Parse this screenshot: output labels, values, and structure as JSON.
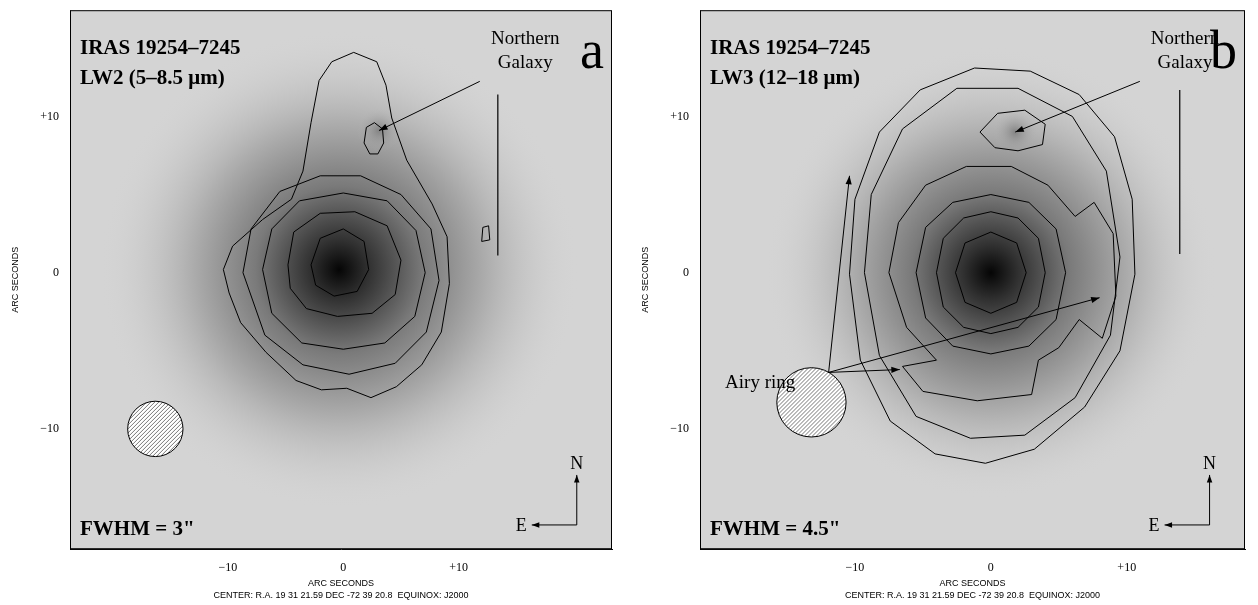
{
  "chart_data": [
    {
      "type": "contour",
      "panel": "a",
      "title": "IRAS 19254–7245",
      "subtitle": "LW2 (5–8.5 μm)",
      "beam_label": "FWHM = 3\"",
      "beam": {
        "x": -16.3,
        "y": -10.0,
        "diameter": 4.8
      },
      "x_label": "ARC SECONDS",
      "y_label": "ARC SECONDS",
      "caption": "CENTER: R.A. 19 31 21.59 DEC -72 39 20.8  EQUINOX: J2000",
      "xlim": [
        -23.7,
        23.3
      ],
      "ylim": [
        -17.7,
        16.8
      ],
      "xticks": [
        {
          "value": -10,
          "label": "−10"
        },
        0,
        {
          "value": 10,
          "label": "+10"
        }
      ],
      "yticks": [
        {
          "value": -10,
          "label": "−10"
        },
        0,
        {
          "value": 10,
          "label": "+10"
        }
      ],
      "grid": false,
      "peak": [
        -0.35,
        0.2
      ],
      "contours": [
        [
          [
            -10.4,
            0.2
          ],
          [
            -9.6,
            1.7
          ],
          [
            -7.0,
            3.4
          ],
          [
            -4.5,
            4.7
          ],
          [
            -3.5,
            6.5
          ],
          [
            -2.8,
            9.6
          ],
          [
            -2.1,
            12.3
          ],
          [
            -1.0,
            13.5
          ],
          [
            0.9,
            14.1
          ],
          [
            2.9,
            13.5
          ],
          [
            3.7,
            12.0
          ],
          [
            4.2,
            9.9
          ],
          [
            5.5,
            7.2
          ],
          [
            7.7,
            4.4
          ],
          [
            9.0,
            2.3
          ],
          [
            9.2,
            -0.7
          ],
          [
            8.5,
            -3.8
          ],
          [
            6.8,
            -5.9
          ],
          [
            4.6,
            -7.3
          ],
          [
            2.4,
            -8.0
          ],
          [
            0.3,
            -7.4
          ],
          [
            -1.9,
            -7.5
          ],
          [
            -4.1,
            -6.9
          ],
          [
            -6.7,
            -5.1
          ],
          [
            -8.9,
            -3.2
          ],
          [
            -9.9,
            -1.3
          ]
        ],
        [
          [
            -8.7,
            0.0
          ],
          [
            -8.0,
            2.8
          ],
          [
            -5.5,
            5.2
          ],
          [
            -2.0,
            6.2
          ],
          [
            1.5,
            6.2
          ],
          [
            5.0,
            5.0
          ],
          [
            7.6,
            2.8
          ],
          [
            8.3,
            -0.5
          ],
          [
            7.2,
            -3.8
          ],
          [
            4.5,
            -5.8
          ],
          [
            0.5,
            -6.5
          ],
          [
            -3.5,
            -5.9
          ],
          [
            -6.8,
            -4.0
          ]
        ],
        [
          [
            -7.0,
            0.2
          ],
          [
            -6.2,
            2.8
          ],
          [
            -3.8,
            4.6
          ],
          [
            0.0,
            5.1
          ],
          [
            3.8,
            4.6
          ],
          [
            6.3,
            2.7
          ],
          [
            7.1,
            0.0
          ],
          [
            6.2,
            -2.8
          ],
          [
            3.6,
            -4.5
          ],
          [
            0.0,
            -4.9
          ],
          [
            -3.6,
            -4.5
          ],
          [
            -6.2,
            -2.6
          ]
        ],
        [
          [
            -4.8,
            0.5
          ],
          [
            -4.3,
            2.6
          ],
          [
            -2.0,
            3.8
          ],
          [
            1.0,
            3.9
          ],
          [
            3.8,
            3.0
          ],
          [
            5.0,
            0.8
          ],
          [
            4.5,
            -1.4
          ],
          [
            2.5,
            -2.6
          ],
          [
            -0.5,
            -2.8
          ],
          [
            -3.2,
            -2.3
          ],
          [
            -4.6,
            -1.0
          ]
        ],
        [
          [
            -2.8,
            0.5
          ],
          [
            -2.0,
            2.2
          ],
          [
            0.0,
            2.8
          ],
          [
            1.8,
            2.0
          ],
          [
            2.2,
            0.2
          ],
          [
            1.2,
            -1.2
          ],
          [
            -0.8,
            -1.5
          ],
          [
            -2.4,
            -0.8
          ]
        ],
        [
          [
            1.8,
            8.3
          ],
          [
            2.0,
            9.3
          ],
          [
            2.7,
            9.6
          ],
          [
            3.4,
            9.2
          ],
          [
            3.5,
            8.3
          ],
          [
            3.0,
            7.6
          ],
          [
            2.3,
            7.6
          ]
        ],
        [
          [
            12.0,
            2.0
          ],
          [
            12.1,
            2.9
          ],
          [
            12.6,
            3.0
          ],
          [
            12.7,
            2.1
          ]
        ]
      ],
      "scale_bar": [
        [
          13.4,
          1.1
        ],
        [
          13.4,
          11.4
        ]
      ],
      "annotations": [
        {
          "text": "Northern Galaxy",
          "targets": [
            [
              3.1,
              9.1
            ]
          ]
        }
      ],
      "compass": [
        "N",
        "E"
      ]
    },
    {
      "type": "contour",
      "panel": "b",
      "title": "IRAS 19254–7245",
      "subtitle": "LW3 (12–18 μm)",
      "beam_label": "FWHM = 4.5\"",
      "beam": {
        "x": -13.2,
        "y": -8.3,
        "diameter": 5.1
      },
      "x_label": "ARC SECONDS",
      "y_label": "ARC SECONDS",
      "caption": "CENTER: R.A. 19 31 21.59 DEC -72 39 20.8  EQUINOX: J2000",
      "xlim": [
        -21.4,
        18.7
      ],
      "ylim": [
        -17.7,
        16.8
      ],
      "xticks": [
        {
          "value": -10,
          "label": "−10"
        },
        0,
        {
          "value": 10,
          "label": "+10"
        }
      ],
      "yticks": [
        {
          "value": -10,
          "label": "−10"
        },
        0,
        {
          "value": 10,
          "label": "+10"
        }
      ],
      "grid": false,
      "peak": [
        0.0,
        0.0
      ],
      "contours": [
        [
          [
            -10.4,
            -0.1
          ],
          [
            -10.0,
            4.7
          ],
          [
            -8.2,
            9.0
          ],
          [
            -5.2,
            11.7
          ],
          [
            -1.2,
            13.1
          ],
          [
            2.9,
            12.9
          ],
          [
            6.5,
            11.4
          ],
          [
            9.1,
            8.7
          ],
          [
            10.4,
            4.7
          ],
          [
            10.6,
            -0.1
          ],
          [
            9.5,
            -5.0
          ],
          [
            6.9,
            -8.6
          ],
          [
            3.2,
            -11.3
          ],
          [
            -0.4,
            -12.2
          ],
          [
            -4.1,
            -11.6
          ],
          [
            -7.4,
            -9.5
          ],
          [
            -9.6,
            -5.6
          ]
        ],
        [
          [
            -9.3,
            0.0
          ],
          [
            -8.8,
            5.0
          ],
          [
            -6.5,
            9.2
          ],
          [
            -2.5,
            11.8
          ],
          [
            2.0,
            11.8
          ],
          [
            6.0,
            10.0
          ],
          [
            8.5,
            6.5
          ],
          [
            9.5,
            1.0
          ],
          [
            8.8,
            -4.0
          ],
          [
            6.2,
            -8.0
          ],
          [
            2.5,
            -10.4
          ],
          [
            -1.5,
            -10.6
          ],
          [
            -5.5,
            -9.2
          ],
          [
            -8.2,
            -5.3
          ]
        ],
        [
          [
            -7.5,
            0.0
          ],
          [
            -6.8,
            3.2
          ],
          [
            -4.8,
            5.6
          ],
          [
            -1.8,
            6.8
          ],
          [
            1.5,
            6.8
          ],
          [
            4.2,
            5.6
          ],
          [
            6.2,
            3.6
          ],
          [
            7.6,
            4.5
          ],
          [
            9.0,
            2.5
          ],
          [
            9.2,
            -1.5
          ],
          [
            8.2,
            -4.2
          ],
          [
            6.5,
            -3.0
          ],
          [
            5.0,
            -4.8
          ],
          [
            3.5,
            -5.6
          ],
          [
            3.0,
            -7.8
          ],
          [
            -1.0,
            -8.2
          ],
          [
            -5.0,
            -7.6
          ],
          [
            -6.5,
            -6.0
          ],
          [
            -4.0,
            -5.6
          ],
          [
            -6.2,
            -3.5
          ]
        ],
        [
          [
            -5.5,
            0.0
          ],
          [
            -4.8,
            2.9
          ],
          [
            -2.8,
            4.5
          ],
          [
            0.0,
            5.0
          ],
          [
            2.8,
            4.5
          ],
          [
            4.8,
            2.8
          ],
          [
            5.5,
            0.0
          ],
          [
            4.8,
            -3.0
          ],
          [
            2.8,
            -4.7
          ],
          [
            0.0,
            -5.2
          ],
          [
            -2.8,
            -4.7
          ],
          [
            -4.8,
            -2.9
          ]
        ],
        [
          [
            -4.0,
            0.0
          ],
          [
            -3.5,
            2.2
          ],
          [
            -2.0,
            3.5
          ],
          [
            0.0,
            3.9
          ],
          [
            2.0,
            3.5
          ],
          [
            3.5,
            2.2
          ],
          [
            4.0,
            0.0
          ],
          [
            3.5,
            -2.2
          ],
          [
            2.0,
            -3.5
          ],
          [
            0.0,
            -3.9
          ],
          [
            -2.0,
            -3.5
          ],
          [
            -3.5,
            -2.2
          ]
        ],
        [
          [
            -2.6,
            0.0
          ],
          [
            -1.9,
            1.9
          ],
          [
            0.0,
            2.6
          ],
          [
            1.9,
            1.9
          ],
          [
            2.6,
            0.0
          ],
          [
            1.9,
            -1.9
          ],
          [
            0.0,
            -2.6
          ],
          [
            -1.9,
            -1.9
          ]
        ],
        [
          [
            -0.8,
            9.0
          ],
          [
            0.5,
            10.2
          ],
          [
            2.5,
            10.4
          ],
          [
            4.0,
            9.5
          ],
          [
            3.8,
            8.2
          ],
          [
            2.0,
            7.8
          ],
          [
            0.3,
            8.0
          ]
        ]
      ],
      "scale_bar": [
        [
          13.9,
          1.2
        ],
        [
          13.9,
          11.7
        ]
      ],
      "annotations": [
        {
          "text": "Northern Galaxy",
          "targets": [
            [
              1.8,
              9.0
            ]
          ]
        },
        {
          "text": "Airy ring",
          "targets": [
            [
              -10.4,
              6.2
            ],
            [
              8.0,
              -1.6
            ],
            [
              -6.7,
              -6.2
            ]
          ]
        }
      ],
      "compass": [
        "N",
        "E"
      ]
    }
  ]
}
